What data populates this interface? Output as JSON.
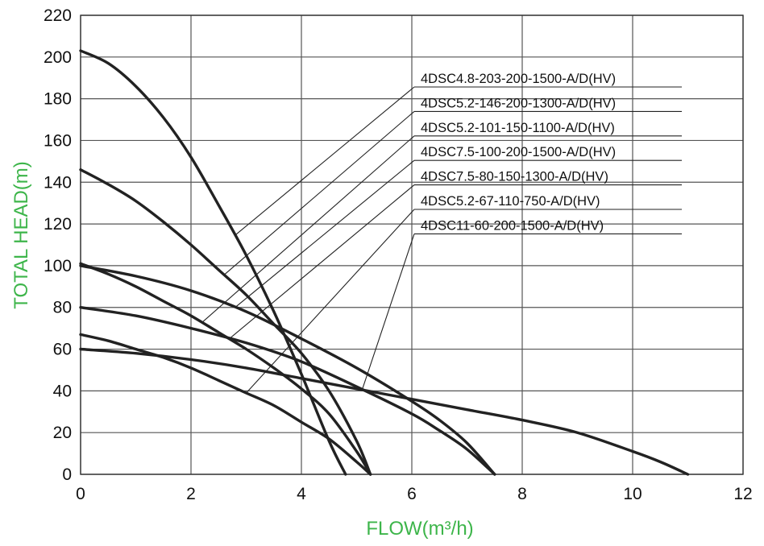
{
  "chart_data": {
    "type": "line",
    "title": "",
    "xlabel": "FLOW(m³/h)",
    "ylabel": "TOTAL HEAD(m)",
    "xlim": [
      0,
      12
    ],
    "ylim": [
      0,
      220
    ],
    "x_ticks": [
      0,
      2,
      4,
      6,
      8,
      10,
      12
    ],
    "y_ticks": [
      0,
      20,
      40,
      60,
      80,
      100,
      120,
      140,
      160,
      180,
      200,
      220
    ],
    "grid": true,
    "label_color": "#3db54a",
    "line_color": "#222222",
    "series": [
      {
        "name": "4DSC4.8-203-200-1500-A/D(HV)",
        "x": [
          0,
          0.5,
          1,
          1.5,
          2,
          2.5,
          3,
          3.5,
          4,
          4.5,
          4.8
        ],
        "y": [
          203,
          197,
          186,
          171,
          152,
          129,
          105,
          78,
          48,
          16,
          0
        ]
      },
      {
        "name": "4DSC5.2-146-200-1300-A/D(HV)",
        "x": [
          0,
          0.5,
          1,
          1.5,
          2,
          2.5,
          3,
          3.5,
          4,
          4.5,
          5,
          5.25
        ],
        "y": [
          146,
          139,
          131,
          121,
          110,
          98,
          86,
          72,
          58,
          40,
          16,
          0
        ]
      },
      {
        "name": "4DSC5.2-101-150-1100-A/D(HV)",
        "x": [
          0,
          0.5,
          1,
          1.5,
          2,
          2.5,
          3,
          3.5,
          4,
          4.5,
          5,
          5.25
        ],
        "y": [
          101,
          96,
          90,
          83,
          76,
          68,
          60,
          51,
          41,
          29,
          11,
          0
        ]
      },
      {
        "name": "4DSC7.5-100-200-1500-A/D(HV)",
        "x": [
          0,
          1,
          2,
          3,
          4,
          5,
          6,
          6.5,
          7,
          7.5
        ],
        "y": [
          100,
          95,
          88,
          78,
          65,
          51,
          35,
          26,
          15,
          0
        ]
      },
      {
        "name": "4DSC7.5-80-150-1300-A/D(HV)",
        "x": [
          0,
          1,
          2,
          3,
          4,
          5,
          6,
          6.5,
          7,
          7.5
        ],
        "y": [
          80,
          76,
          70,
          63,
          54,
          42,
          29,
          21,
          12,
          0
        ]
      },
      {
        "name": "4DSC5.2-67-110-750-A/D(HV)",
        "x": [
          0,
          0.5,
          1,
          1.5,
          2,
          2.5,
          3,
          3.5,
          4,
          4.5,
          5,
          5.25
        ],
        "y": [
          67,
          64,
          60,
          56,
          51,
          45,
          39,
          33,
          25,
          17,
          6,
          0
        ]
      },
      {
        "name": "4DSC11-60-200-1500-A/D(HV)",
        "x": [
          0,
          1,
          2,
          3,
          4,
          5,
          6,
          7,
          8,
          9,
          10,
          10.5,
          11
        ],
        "y": [
          60,
          58,
          55,
          51,
          46,
          41,
          36,
          31,
          26,
          20,
          11,
          6,
          0
        ]
      }
    ],
    "legend": {
      "placement": "top-right",
      "style": "leader lines from labels to curves",
      "entries": [
        "4DSC4.8-203-200-1500-A/D(HV)",
        "4DSC5.2-146-200-1300-A/D(HV)",
        "4DSC5.2-101-150-1100-A/D(HV)",
        "4DSC7.5-100-200-1500-A/D(HV)",
        "4DSC7.5-80-150-1300-A/D(HV)",
        "4DSC5.2-67-110-750-A/D(HV)",
        "4DSC11-60-200-1500-A/D(HV)"
      ]
    }
  }
}
